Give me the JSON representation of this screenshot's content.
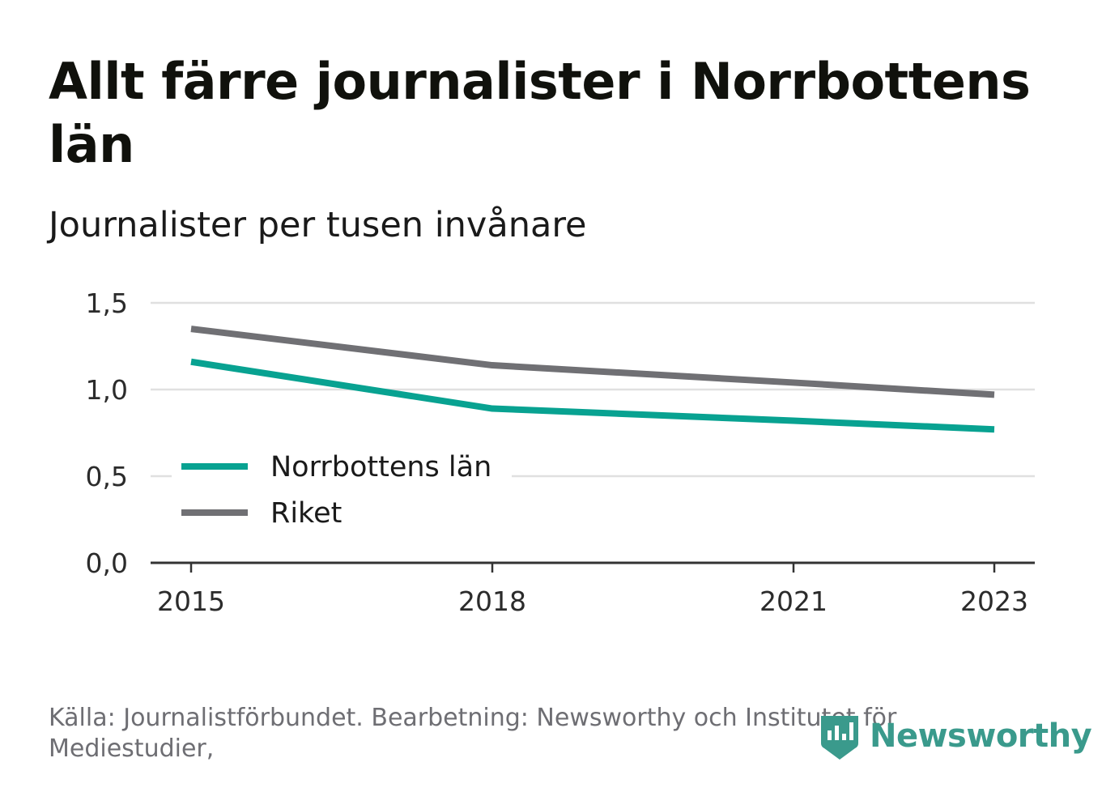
{
  "title": "Allt färre journalister i Norrbottens län",
  "subtitle": "Journalister per tusen invånare",
  "footer": {
    "source": "Källa: Journalistförbundet. Bearbetning: Newsworthy och Institutet för Mediestudier,"
  },
  "brand": {
    "name": "Newsworthy",
    "icon": "newsworthy-logo-icon"
  },
  "colors": {
    "norrbotten": "#08a291",
    "riket": "#707074",
    "grid": "#e0e0e0",
    "axis": "#333333"
  },
  "chart_data": {
    "type": "line",
    "x": [
      2015,
      2018,
      2021,
      2023
    ],
    "x_ticks": [
      "2015",
      "2018",
      "2021",
      "2023"
    ],
    "y_ticks": [
      "0,0",
      "0,5",
      "1,0",
      "1,5"
    ],
    "ylim": [
      0,
      1.5
    ],
    "xlim": [
      2015,
      2023
    ],
    "grid": "horizontal",
    "legend_position": "bottom-left",
    "series": [
      {
        "name": "Norrbottens län",
        "color": "#08a291",
        "values": [
          1.16,
          0.89,
          0.82,
          0.77
        ]
      },
      {
        "name": "Riket",
        "color": "#707074",
        "values": [
          1.35,
          1.14,
          1.04,
          0.97
        ]
      }
    ]
  }
}
